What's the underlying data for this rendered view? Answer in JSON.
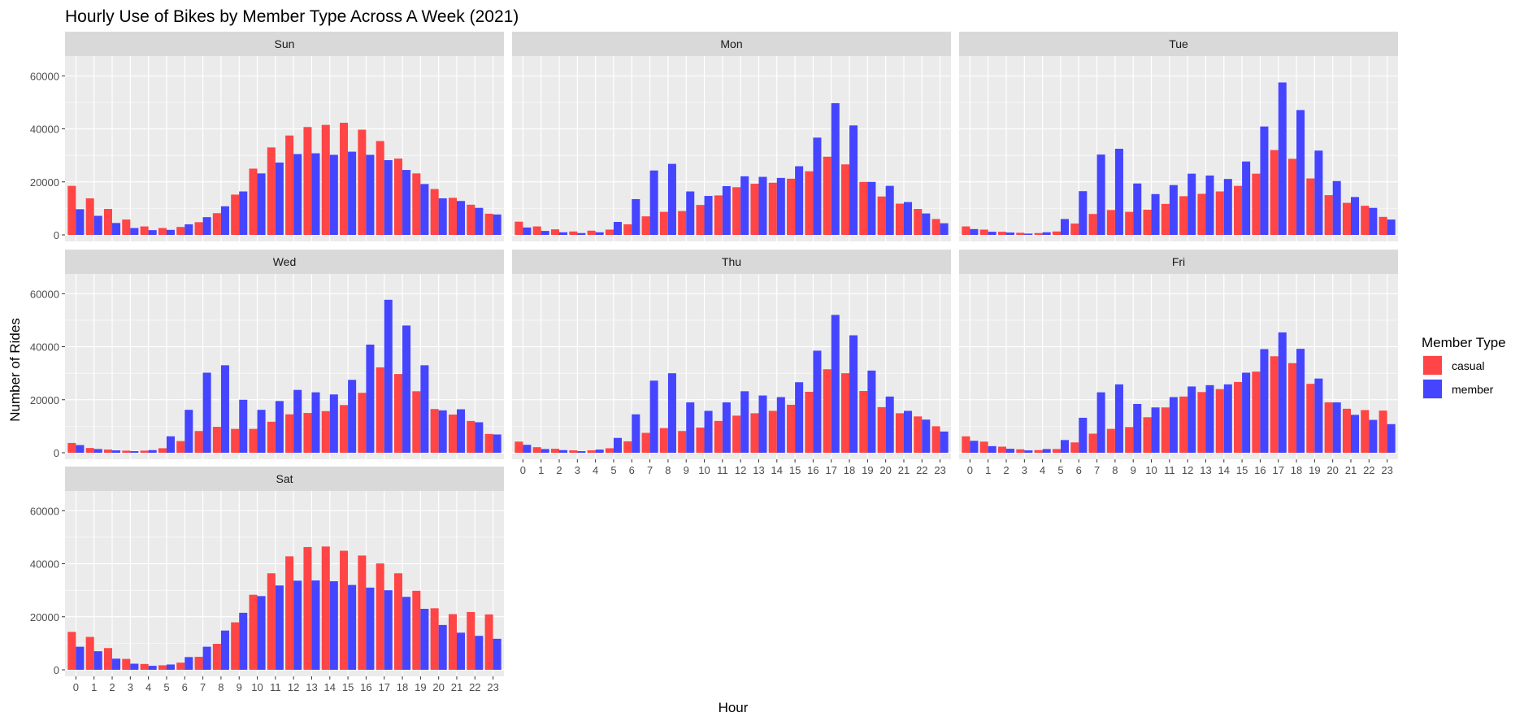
{
  "chart_data": {
    "type": "bar",
    "title": "Hourly Use of Bikes by Member Type Across A Week (2021)",
    "xlabel": "Hour",
    "ylabel": "Number of Rides",
    "ylim": [
      0,
      65000
    ],
    "y_ticks": [
      0,
      20000,
      40000,
      60000
    ],
    "y_tick_labels": [
      "0",
      "20000",
      "40000",
      "60000"
    ],
    "categories": [
      "0",
      "1",
      "2",
      "3",
      "4",
      "5",
      "6",
      "7",
      "8",
      "9",
      "10",
      "11",
      "12",
      "13",
      "14",
      "15",
      "16",
      "17",
      "18",
      "19",
      "20",
      "21",
      "22",
      "23"
    ],
    "legend": {
      "title": "Member Type",
      "position": "right",
      "entries": [
        {
          "name": "casual",
          "color": "#ff4545"
        },
        {
          "name": "member",
          "color": "#4545ff"
        }
      ]
    },
    "grid": true,
    "facets": [
      {
        "label": "Sun",
        "series": [
          {
            "name": "casual",
            "values": [
              18500,
              13800,
              9800,
              5800,
              3200,
              2600,
              3000,
              4800,
              8200,
              15200,
              25000,
              33000,
              37500,
              40700,
              41500,
              42300,
              39700,
              35400,
              28800,
              23200,
              17300,
              14000,
              11400,
              8000
            ]
          },
          {
            "name": "member",
            "values": [
              9700,
              7200,
              4500,
              2600,
              1800,
              1900,
              4000,
              6700,
              10800,
              16400,
              23200,
              27300,
              30500,
              30800,
              30200,
              31400,
              30200,
              28200,
              24500,
              19200,
              13800,
              12800,
              10200,
              7700
            ]
          }
        ]
      },
      {
        "label": "Mon",
        "series": [
          {
            "name": "casual",
            "values": [
              5000,
              3200,
              2100,
              1300,
              1600,
              2000,
              4000,
              7000,
              8700,
              9000,
              11300,
              14900,
              18000,
              19300,
              19700,
              21200,
              24000,
              29500,
              26600,
              20000,
              14500,
              11800,
              9800,
              6000
            ]
          },
          {
            "name": "member",
            "values": [
              2800,
              1500,
              1000,
              700,
              1000,
              4900,
              13500,
              24300,
              26800,
              16400,
              14700,
              18400,
              22100,
              21900,
              21500,
              25900,
              36700,
              49700,
              41300,
              20000,
              18500,
              12400,
              8100,
              4400
            ]
          }
        ]
      },
      {
        "label": "Tue",
        "series": [
          {
            "name": "casual",
            "values": [
              3200,
              2000,
              1200,
              800,
              700,
              1300,
              4300,
              7900,
              9400,
              8700,
              9500,
              11700,
              14600,
              15500,
              16400,
              18500,
              23100,
              32000,
              28700,
              21300,
              15000,
              12100,
              11000,
              6800
            ]
          },
          {
            "name": "member",
            "values": [
              2200,
              1200,
              900,
              500,
              1000,
              6000,
              16500,
              30300,
              32500,
              19400,
              15400,
              18800,
              23100,
              22400,
              21100,
              27700,
              40900,
              57500,
              47100,
              31800,
              20300,
              14300,
              10200,
              5800
            ]
          }
        ]
      },
      {
        "label": "Wed",
        "series": [
          {
            "name": "casual",
            "values": [
              3700,
              1800,
              1200,
              800,
              800,
              1700,
              4400,
              8200,
              9800,
              9000,
              9000,
              11700,
              14500,
              15000,
              15700,
              18000,
              22600,
              32200,
              29700,
              23200,
              16500,
              14400,
              12000,
              7100
            ]
          },
          {
            "name": "member",
            "values": [
              2900,
              1400,
              900,
              600,
              1000,
              6200,
              16200,
              30200,
              33000,
              20000,
              16200,
              19500,
              23700,
              22800,
              22000,
              27500,
              40800,
              57700,
              48000,
              33000,
              16000,
              16400,
              11500,
              6900
            ]
          }
        ]
      },
      {
        "label": "Thu",
        "series": [
          {
            "name": "casual",
            "values": [
              4200,
              2100,
              1500,
              900,
              900,
              1700,
              4300,
              7500,
              9300,
              8200,
              9500,
              12000,
              14000,
              14900,
              15800,
              18100,
              23000,
              31500,
              30000,
              23300,
              17200,
              14900,
              13700,
              10000
            ]
          },
          {
            "name": "member",
            "values": [
              3000,
              1400,
              1000,
              600,
              1200,
              5600,
              14500,
              27200,
              30000,
              19000,
              15800,
              19000,
              23200,
              21600,
              21000,
              26600,
              38500,
              52000,
              44300,
              31000,
              21200,
              15800,
              12500,
              8000
            ]
          }
        ]
      },
      {
        "label": "Fri",
        "series": [
          {
            "name": "casual",
            "values": [
              6200,
              4200,
              2300,
              1300,
              1000,
              1400,
              3900,
              7200,
              9000,
              9700,
              13400,
              17100,
              21200,
              22900,
              24000,
              26700,
              30600,
              36400,
              33800,
              26000,
              19000,
              16600,
              16100,
              15900
            ]
          },
          {
            "name": "member",
            "values": [
              4500,
              2500,
              1500,
              900,
              1400,
              4800,
              13200,
              22800,
              25800,
              18400,
              17100,
              21000,
              25000,
              25500,
              25800,
              30200,
              39100,
              45400,
              39200,
              28000,
              19000,
              14300,
              12400,
              10800
            ]
          }
        ]
      },
      {
        "label": "Sat",
        "series": [
          {
            "name": "casual",
            "values": [
              14300,
              12400,
              8200,
              4100,
              2200,
              1700,
              2700,
              4900,
              9800,
              17900,
              28300,
              36400,
              42800,
              46300,
              46500,
              44900,
              43100,
              40100,
              36400,
              29800,
              23200,
              21000,
              21800,
              20900
            ]
          },
          {
            "name": "member",
            "values": [
              8700,
              7000,
              4200,
              2300,
              1500,
              2000,
              4800,
              8700,
              14800,
              21500,
              27800,
              31800,
              33600,
              33700,
              33400,
              32000,
              31000,
              30000,
              27500,
              23000,
              16900,
              14000,
              12800,
              11700
            ]
          }
        ]
      }
    ]
  }
}
